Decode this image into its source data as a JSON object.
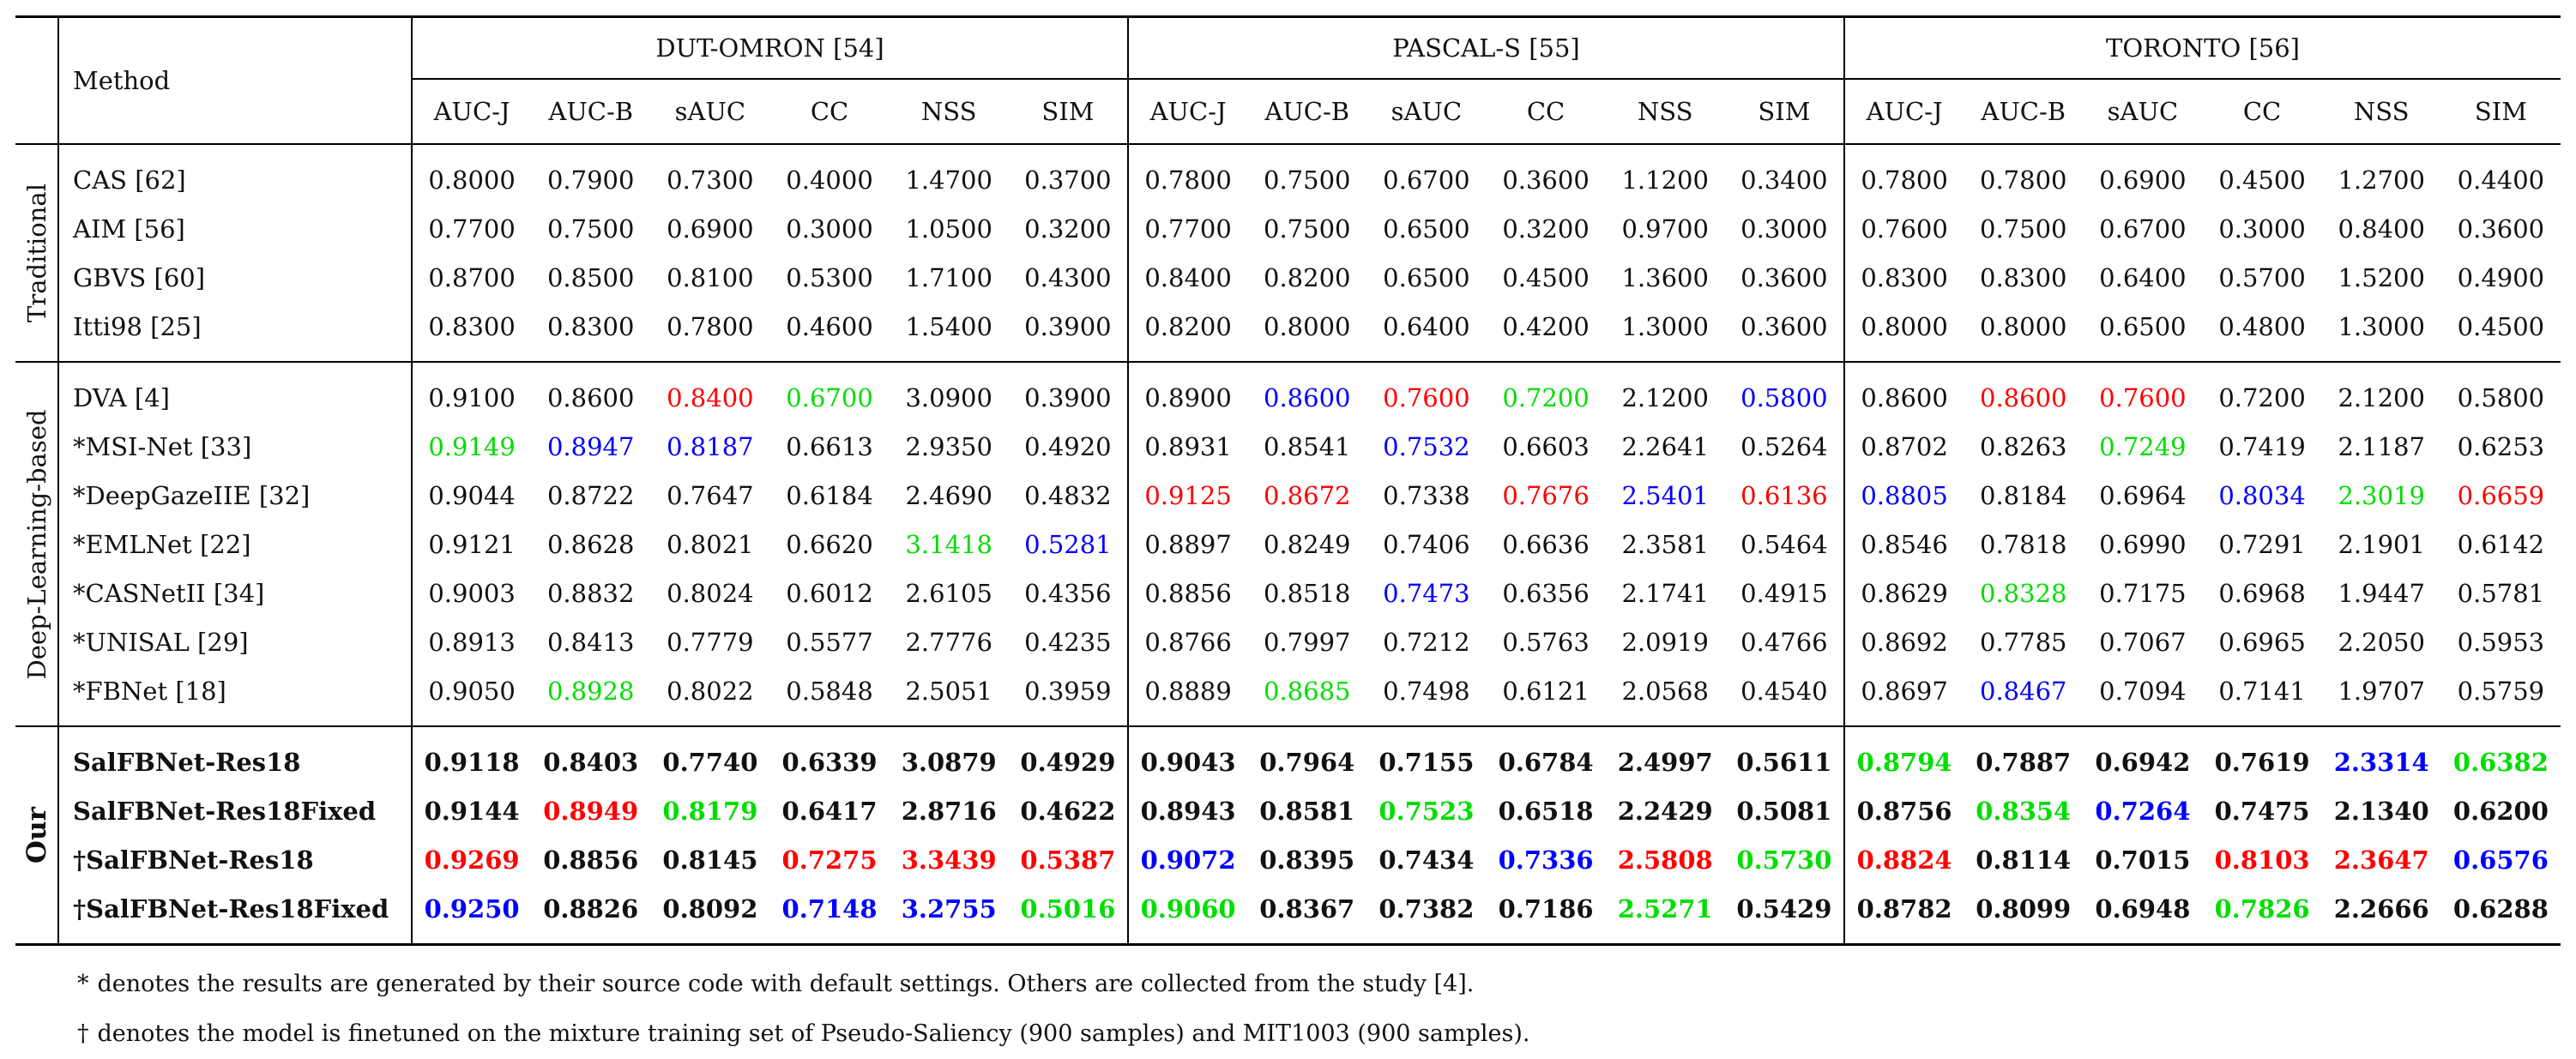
{
  "table": {
    "method_header": "Method",
    "datasets": [
      "DUT-OMRON [54]",
      "PASCAL-S [55]",
      "TORONTO [56]"
    ],
    "metrics": [
      "AUC-J",
      "AUC-B",
      "sAUC",
      "CC",
      "NSS",
      "SIM"
    ],
    "colors": {
      "red": "#ff0000",
      "green": "#00dd00",
      "blue": "#0000ff",
      "black": "#111111"
    },
    "groups": [
      {
        "label": "Traditional",
        "bold": false,
        "rows": [
          {
            "method": "CAS [62]",
            "values": [
              "0.8000",
              "0.7900",
              "0.7300",
              "0.4000",
              "1.4700",
              "0.3700",
              "0.7800",
              "0.7500",
              "0.6700",
              "0.3600",
              "1.1200",
              "0.3400",
              "0.7800",
              "0.7800",
              "0.6900",
              "0.4500",
              "1.2700",
              "0.4400"
            ],
            "colors": [
              "",
              "",
              "",
              "",
              "",
              "",
              "",
              "",
              "",
              "",
              "",
              "",
              "",
              "",
              "",
              "",
              "",
              ""
            ]
          },
          {
            "method": "AIM [56]",
            "values": [
              "0.7700",
              "0.7500",
              "0.6900",
              "0.3000",
              "1.0500",
              "0.3200",
              "0.7700",
              "0.7500",
              "0.6500",
              "0.3200",
              "0.9700",
              "0.3000",
              "0.7600",
              "0.7500",
              "0.6700",
              "0.3000",
              "0.8400",
              "0.3600"
            ],
            "colors": [
              "",
              "",
              "",
              "",
              "",
              "",
              "",
              "",
              "",
              "",
              "",
              "",
              "",
              "",
              "",
              "",
              "",
              ""
            ]
          },
          {
            "method": "GBVS [60]",
            "values": [
              "0.8700",
              "0.8500",
              "0.8100",
              "0.5300",
              "1.7100",
              "0.4300",
              "0.8400",
              "0.8200",
              "0.6500",
              "0.4500",
              "1.3600",
              "0.3600",
              "0.8300",
              "0.8300",
              "0.6400",
              "0.5700",
              "1.5200",
              "0.4900"
            ],
            "colors": [
              "",
              "",
              "",
              "",
              "",
              "",
              "",
              "",
              "",
              "",
              "",
              "",
              "",
              "",
              "",
              "",
              "",
              ""
            ]
          },
          {
            "method": "Itti98 [25]",
            "values": [
              "0.8300",
              "0.8300",
              "0.7800",
              "0.4600",
              "1.5400",
              "0.3900",
              "0.8200",
              "0.8000",
              "0.6400",
              "0.4200",
              "1.3000",
              "0.3600",
              "0.8000",
              "0.8000",
              "0.6500",
              "0.4800",
              "1.3000",
              "0.4500"
            ],
            "colors": [
              "",
              "",
              "",
              "",
              "",
              "",
              "",
              "",
              "",
              "",
              "",
              "",
              "",
              "",
              "",
              "",
              "",
              ""
            ]
          }
        ]
      },
      {
        "label": "Deep-Learning-based",
        "bold": false,
        "rows": [
          {
            "method": "DVA [4]",
            "values": [
              "0.9100",
              "0.8600",
              "0.8400",
              "0.6700",
              "3.0900",
              "0.3900",
              "0.8900",
              "0.8600",
              "0.7600",
              "0.7200",
              "2.1200",
              "0.5800",
              "0.8600",
              "0.8600",
              "0.7600",
              "0.7200",
              "2.1200",
              "0.5800"
            ],
            "colors": [
              "",
              "",
              "red",
              "green",
              "",
              "",
              "",
              "blue",
              "red",
              "green",
              "",
              "blue",
              "",
              "red",
              "red",
              "",
              "",
              ""
            ]
          },
          {
            "method": "*MSI-Net [33]",
            "values": [
              "0.9149",
              "0.8947",
              "0.8187",
              "0.6613",
              "2.9350",
              "0.4920",
              "0.8931",
              "0.8541",
              "0.7532",
              "0.6603",
              "2.2641",
              "0.5264",
              "0.8702",
              "0.8263",
              "0.7249",
              "0.7419",
              "2.1187",
              "0.6253"
            ],
            "colors": [
              "green",
              "blue",
              "blue",
              "",
              "",
              "",
              "",
              "",
              "blue",
              "",
              "",
              "",
              "",
              "",
              "green",
              "",
              "",
              ""
            ]
          },
          {
            "method": "*DeepGazeIIE [32]",
            "values": [
              "0.9044",
              "0.8722",
              "0.7647",
              "0.6184",
              "2.4690",
              "0.4832",
              "0.9125",
              "0.8672",
              "0.7338",
              "0.7676",
              "2.5401",
              "0.6136",
              "0.8805",
              "0.8184",
              "0.6964",
              "0.8034",
              "2.3019",
              "0.6659"
            ],
            "colors": [
              "",
              "",
              "",
              "",
              "",
              "",
              "red",
              "red",
              "",
              "red",
              "blue",
              "red",
              "blue",
              "",
              "",
              "blue",
              "green",
              "red"
            ]
          },
          {
            "method": "*EMLNet [22]",
            "values": [
              "0.9121",
              "0.8628",
              "0.8021",
              "0.6620",
              "3.1418",
              "0.5281",
              "0.8897",
              "0.8249",
              "0.7406",
              "0.6636",
              "2.3581",
              "0.5464",
              "0.8546",
              "0.7818",
              "0.6990",
              "0.7291",
              "2.1901",
              "0.6142"
            ],
            "colors": [
              "",
              "",
              "",
              "",
              "green",
              "blue",
              "",
              "",
              "",
              "",
              "",
              "",
              "",
              "",
              "",
              "",
              "",
              ""
            ]
          },
          {
            "method": "*CASNetII [34]",
            "values": [
              "0.9003",
              "0.8832",
              "0.8024",
              "0.6012",
              "2.6105",
              "0.4356",
              "0.8856",
              "0.8518",
              "0.7473",
              "0.6356",
              "2.1741",
              "0.4915",
              "0.8629",
              "0.8328",
              "0.7175",
              "0.6968",
              "1.9447",
              "0.5781"
            ],
            "colors": [
              "",
              "",
              "",
              "",
              "",
              "",
              "",
              "",
              "blue",
              "",
              "",
              "",
              "",
              "green",
              "",
              "",
              "",
              ""
            ]
          },
          {
            "method": "*UNISAL [29]",
            "values": [
              "0.8913",
              "0.8413",
              "0.7779",
              "0.5577",
              "2.7776",
              "0.4235",
              "0.8766",
              "0.7997",
              "0.7212",
              "0.5763",
              "2.0919",
              "0.4766",
              "0.8692",
              "0.7785",
              "0.7067",
              "0.6965",
              "2.2050",
              "0.5953"
            ],
            "colors": [
              "",
              "",
              "",
              "",
              "",
              "",
              "",
              "",
              "",
              "",
              "",
              "",
              "",
              "",
              "",
              "",
              "",
              ""
            ]
          },
          {
            "method": "*FBNet [18]",
            "values": [
              "0.9050",
              "0.8928",
              "0.8022",
              "0.5848",
              "2.5051",
              "0.3959",
              "0.8889",
              "0.8685",
              "0.7498",
              "0.6121",
              "2.0568",
              "0.4540",
              "0.8697",
              "0.8467",
              "0.7094",
              "0.7141",
              "1.9707",
              "0.5759"
            ],
            "colors": [
              "",
              "green",
              "",
              "",
              "",
              "",
              "",
              "green",
              "",
              "",
              "",
              "",
              "",
              "blue",
              "",
              "",
              "",
              ""
            ]
          }
        ]
      },
      {
        "label": "Our",
        "bold": true,
        "rows": [
          {
            "method": "SalFBNet-Res18",
            "values": [
              "0.9118",
              "0.8403",
              "0.7740",
              "0.6339",
              "3.0879",
              "0.4929",
              "0.9043",
              "0.7964",
              "0.7155",
              "0.6784",
              "2.4997",
              "0.5611",
              "0.8794",
              "0.7887",
              "0.6942",
              "0.7619",
              "2.3314",
              "0.6382"
            ],
            "colors": [
              "",
              "",
              "",
              "",
              "",
              "",
              "",
              "",
              "",
              "",
              "",
              "",
              "green",
              "",
              "",
              "",
              "blue",
              "green"
            ]
          },
          {
            "method": "SalFBNet-Res18Fixed",
            "values": [
              "0.9144",
              "0.8949",
              "0.8179",
              "0.6417",
              "2.8716",
              "0.4622",
              "0.8943",
              "0.8581",
              "0.7523",
              "0.6518",
              "2.2429",
              "0.5081",
              "0.8756",
              "0.8354",
              "0.7264",
              "0.7475",
              "2.1340",
              "0.6200"
            ],
            "colors": [
              "",
              "red",
              "green",
              "",
              "",
              "",
              "",
              "",
              "green",
              "",
              "",
              "",
              "",
              "green",
              "blue",
              "",
              "",
              ""
            ]
          },
          {
            "method": "†SalFBNet-Res18",
            "values": [
              "0.9269",
              "0.8856",
              "0.8145",
              "0.7275",
              "3.3439",
              "0.5387",
              "0.9072",
              "0.8395",
              "0.7434",
              "0.7336",
              "2.5808",
              "0.5730",
              "0.8824",
              "0.8114",
              "0.7015",
              "0.8103",
              "2.3647",
              "0.6576"
            ],
            "colors": [
              "red",
              "",
              "",
              "red",
              "red",
              "red",
              "blue",
              "",
              "",
              "blue",
              "red",
              "green",
              "red",
              "",
              "",
              "red",
              "red",
              "blue"
            ]
          },
          {
            "method": "†SalFBNet-Res18Fixed",
            "values": [
              "0.9250",
              "0.8826",
              "0.8092",
              "0.7148",
              "3.2755",
              "0.5016",
              "0.9060",
              "0.8367",
              "0.7382",
              "0.7186",
              "2.5271",
              "0.5429",
              "0.8782",
              "0.8099",
              "0.6948",
              "0.7826",
              "2.2666",
              "0.6288"
            ],
            "colors": [
              "blue",
              "",
              "",
              "blue",
              "blue",
              "green",
              "green",
              "",
              "",
              "",
              "green",
              "",
              "",
              "",
              "",
              "green",
              "",
              ""
            ]
          }
        ]
      }
    ]
  },
  "notes": [
    {
      "symbol": "*",
      "text": "denotes the results are generated by their source code with default settings. Others are collected from the study [4]."
    },
    {
      "symbol": "†",
      "text": "denotes the model is finetuned on the mixture training set of Pseudo-Saliency (900 samples) and MIT1003 (900 samples)."
    }
  ]
}
